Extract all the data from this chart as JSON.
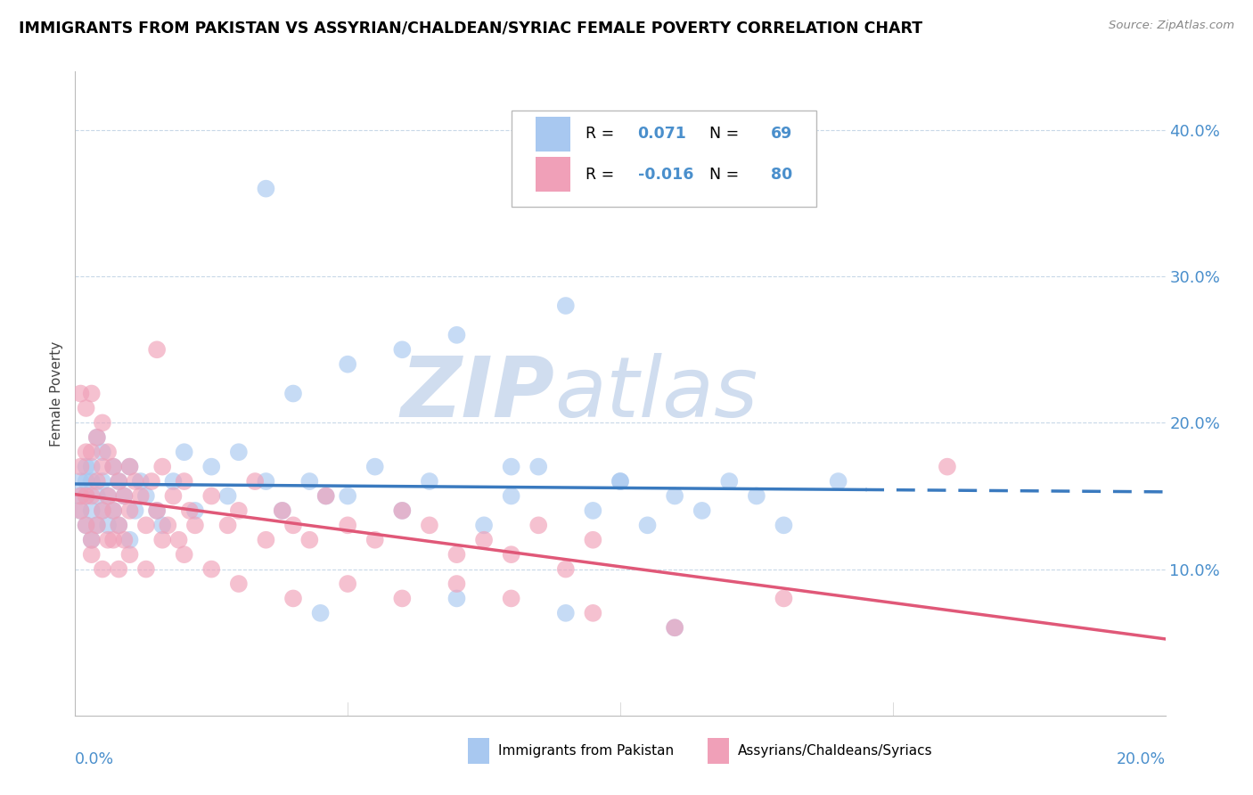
{
  "title": "IMMIGRANTS FROM PAKISTAN VS ASSYRIAN/CHALDEAN/SYRIAC FEMALE POVERTY CORRELATION CHART",
  "source": "Source: ZipAtlas.com",
  "ylabel": "Female Poverty",
  "y_ticks": [
    0.1,
    0.2,
    0.3,
    0.4
  ],
  "y_tick_labels": [
    "10.0%",
    "20.0%",
    "30.0%",
    "40.0%"
  ],
  "xlim": [
    0.0,
    0.2
  ],
  "ylim": [
    0.0,
    0.44
  ],
  "r_blue": 0.071,
  "n_blue": 69,
  "r_pink": -0.016,
  "n_pink": 80,
  "blue_color": "#a8c8f0",
  "pink_color": "#f0a0b8",
  "trend_blue": "#3a7abf",
  "trend_pink": "#e05878",
  "legend_label_blue": "Immigrants from Pakistan",
  "legend_label_pink": "Assyrians/Chaldeans/Syriacs",
  "watermark_zip": "ZIP",
  "watermark_atlas": "atlas",
  "watermark_color": "#d0ddef",
  "blue_scatter_x": [
    0.001,
    0.001,
    0.001,
    0.002,
    0.002,
    0.002,
    0.002,
    0.003,
    0.003,
    0.003,
    0.003,
    0.004,
    0.004,
    0.004,
    0.005,
    0.005,
    0.005,
    0.006,
    0.006,
    0.007,
    0.007,
    0.008,
    0.008,
    0.009,
    0.01,
    0.01,
    0.011,
    0.012,
    0.013,
    0.015,
    0.016,
    0.018,
    0.02,
    0.022,
    0.025,
    0.028,
    0.03,
    0.035,
    0.038,
    0.04,
    0.043,
    0.046,
    0.05,
    0.055,
    0.06,
    0.065,
    0.07,
    0.075,
    0.08,
    0.085,
    0.09,
    0.095,
    0.1,
    0.105,
    0.11,
    0.115,
    0.12,
    0.125,
    0.13,
    0.14,
    0.05,
    0.06,
    0.08,
    0.1,
    0.035,
    0.045,
    0.07,
    0.09,
    0.11
  ],
  "blue_scatter_y": [
    0.14,
    0.15,
    0.16,
    0.13,
    0.15,
    0.16,
    0.17,
    0.12,
    0.14,
    0.16,
    0.17,
    0.13,
    0.15,
    0.19,
    0.14,
    0.16,
    0.18,
    0.13,
    0.15,
    0.14,
    0.17,
    0.13,
    0.16,
    0.15,
    0.12,
    0.17,
    0.14,
    0.16,
    0.15,
    0.14,
    0.13,
    0.16,
    0.18,
    0.14,
    0.17,
    0.15,
    0.18,
    0.16,
    0.14,
    0.22,
    0.16,
    0.15,
    0.15,
    0.17,
    0.14,
    0.16,
    0.26,
    0.13,
    0.15,
    0.17,
    0.28,
    0.14,
    0.16,
    0.13,
    0.15,
    0.14,
    0.16,
    0.15,
    0.13,
    0.16,
    0.24,
    0.25,
    0.17,
    0.16,
    0.36,
    0.07,
    0.08,
    0.07,
    0.06
  ],
  "pink_scatter_x": [
    0.001,
    0.001,
    0.001,
    0.001,
    0.002,
    0.002,
    0.002,
    0.002,
    0.003,
    0.003,
    0.003,
    0.003,
    0.004,
    0.004,
    0.004,
    0.005,
    0.005,
    0.005,
    0.006,
    0.006,
    0.006,
    0.007,
    0.007,
    0.008,
    0.008,
    0.009,
    0.009,
    0.01,
    0.01,
    0.011,
    0.012,
    0.013,
    0.014,
    0.015,
    0.016,
    0.017,
    0.018,
    0.019,
    0.02,
    0.021,
    0.022,
    0.025,
    0.028,
    0.03,
    0.033,
    0.035,
    0.038,
    0.04,
    0.043,
    0.046,
    0.05,
    0.055,
    0.06,
    0.065,
    0.07,
    0.075,
    0.08,
    0.085,
    0.09,
    0.095,
    0.003,
    0.005,
    0.007,
    0.01,
    0.013,
    0.016,
    0.02,
    0.025,
    0.03,
    0.04,
    0.05,
    0.06,
    0.07,
    0.08,
    0.095,
    0.11,
    0.13,
    0.16,
    0.015,
    0.008
  ],
  "pink_scatter_y": [
    0.22,
    0.17,
    0.15,
    0.14,
    0.21,
    0.18,
    0.15,
    0.13,
    0.22,
    0.18,
    0.15,
    0.12,
    0.19,
    0.16,
    0.13,
    0.2,
    0.17,
    0.14,
    0.18,
    0.15,
    0.12,
    0.17,
    0.14,
    0.16,
    0.13,
    0.15,
    0.12,
    0.17,
    0.14,
    0.16,
    0.15,
    0.13,
    0.16,
    0.14,
    0.17,
    0.13,
    0.15,
    0.12,
    0.16,
    0.14,
    0.13,
    0.15,
    0.13,
    0.14,
    0.16,
    0.12,
    0.14,
    0.13,
    0.12,
    0.15,
    0.13,
    0.12,
    0.14,
    0.13,
    0.11,
    0.12,
    0.11,
    0.13,
    0.1,
    0.12,
    0.11,
    0.1,
    0.12,
    0.11,
    0.1,
    0.12,
    0.11,
    0.1,
    0.09,
    0.08,
    0.09,
    0.08,
    0.09,
    0.08,
    0.07,
    0.06,
    0.08,
    0.17,
    0.25,
    0.1
  ]
}
